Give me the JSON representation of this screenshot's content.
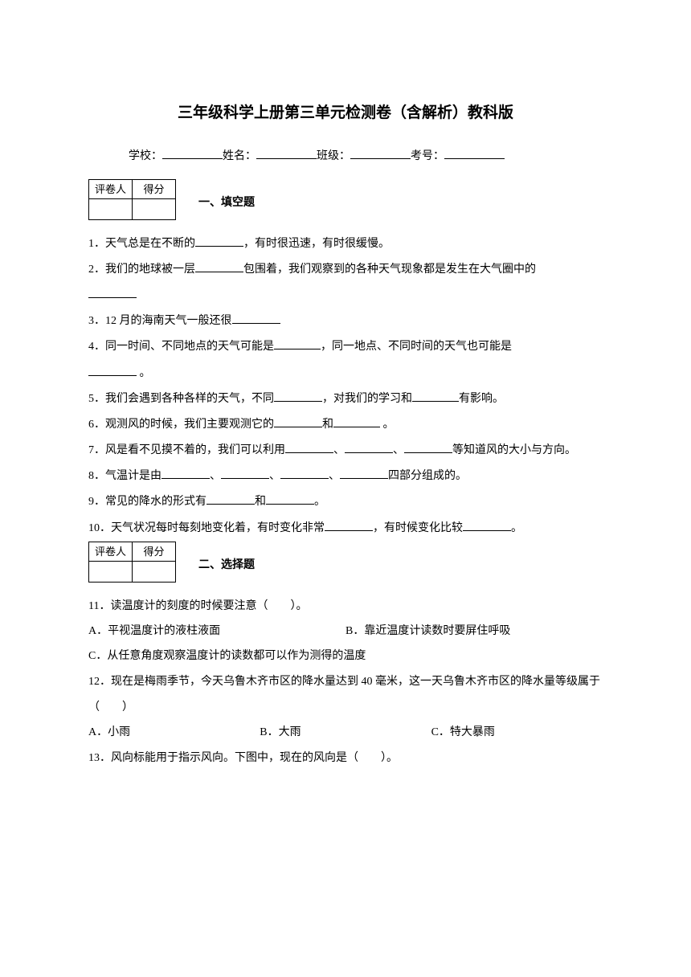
{
  "title": "三年级科学上册第三单元检测卷（含解析）教科版",
  "info": {
    "school_label": "学校：",
    "name_label": "姓名：",
    "class_label": "班级：",
    "exam_label": "考号："
  },
  "score_table": {
    "col1": "评卷人",
    "col2": "得分"
  },
  "section1_title": "一、填空题",
  "section2_title": "二、选择题",
  "q1": {
    "prefix": "1．天气总是在不断的",
    "suffix": "，有时很迅速，有时很缓慢。"
  },
  "q2": {
    "prefix": "2．我们的地球被一层",
    "suffix": "包围着，我们观察到的各种天气现象都是发生在大气圈中的"
  },
  "q3": {
    "prefix": "3．12 月的海南天气一般还很"
  },
  "q4": {
    "prefix": "4．同一时间、不同地点的天气可能是",
    "mid": "，同一地点、不同时间的天气也可能是",
    "suffix": " 。"
  },
  "q5": {
    "prefix": "5．我们会遇到各种各样的天气，不同",
    "mid": "，对我们的学习和",
    "suffix": "有影响。"
  },
  "q6": {
    "prefix": "6．观测风的时候，我们主要观测它的",
    "mid": "和",
    "suffix": " 。"
  },
  "q7": {
    "prefix": "7．风是看不见摸不着的，我们可以利用",
    "sep": "、",
    "suffix": "等知道风的大小与方向。"
  },
  "q8": {
    "prefix": "8．气温计是由",
    "sep": "、",
    "suffix": "四部分组成的。"
  },
  "q9": {
    "prefix": "9．常见的降水的形式有",
    "mid": "和",
    "suffix": "。"
  },
  "q10": {
    "prefix": "10．天气状况每时每刻地变化着，有时变化非常",
    "mid": "，有时候变化比较",
    "suffix": "。"
  },
  "q11": {
    "text": "11．读温度计的刻度的时候要注意（　　）。",
    "optA": "A．平视温度计的液柱液面",
    "optB": "B．靠近温度计读数时要屏住呼吸",
    "optC": "C．从任意角度观察温度计的读数都可以作为测得的温度"
  },
  "q12": {
    "text": "12．现在是梅雨季节，今天乌鲁木齐市区的降水量达到 40 毫米，这一天乌鲁木齐市区的降水量等级属于（　　）",
    "optA": "A．小雨",
    "optB": "B．大雨",
    "optC": "C．特大暴雨"
  },
  "q13": {
    "text": "13．风向标能用于指示风向。下图中，现在的风向是（　　）。"
  }
}
